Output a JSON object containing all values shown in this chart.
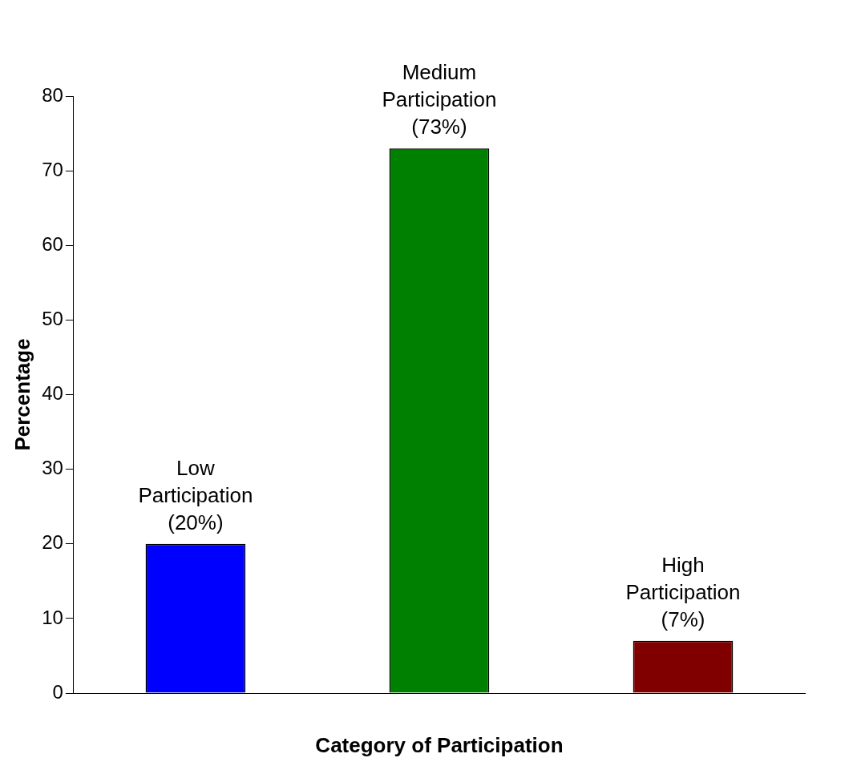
{
  "chart_data": {
    "type": "bar",
    "xlabel": "Category of Participation",
    "ylabel": "Percentage",
    "categories": [
      null,
      null,
      null
    ],
    "values": [
      20,
      73,
      7
    ],
    "colors": [
      "#0000ff",
      "#008000",
      "#800000"
    ],
    "value_labels": [
      "Low Participation (20%)",
      "Medium Participation (73%)",
      "High Participation (7%)"
    ],
    "ylim": [
      0,
      80
    ],
    "yticks": [
      0,
      10,
      20,
      30,
      40,
      50,
      60,
      70,
      80
    ],
    "grid": false,
    "legend": false
  }
}
